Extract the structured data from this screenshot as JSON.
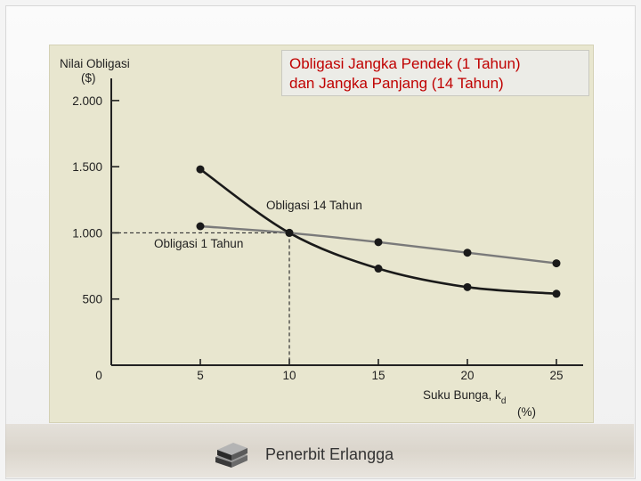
{
  "chart_data": {
    "type": "line",
    "title": "Obligasi Jangka Pendek (1 Tahun)",
    "title_line2": "dan Jangka Panjang (14 Tahun)",
    "ylabel_line1": "Nilai Obligasi",
    "ylabel_line2": "($)",
    "xlabel_line1": "Suku Bunga, k",
    "xlabel_sub": "d",
    "xlabel_line2": "(%)",
    "x": [
      5,
      10,
      15,
      20,
      25
    ],
    "xlim": [
      0,
      26
    ],
    "ylim": [
      0,
      2100
    ],
    "yticks": [
      {
        "value": 500,
        "label": "500"
      },
      {
        "value": 1000,
        "label": "1.000"
      },
      {
        "value": 1500,
        "label": "1.500"
      },
      {
        "value": 2000,
        "label": "2.000"
      }
    ],
    "xticks": [
      {
        "value": 0,
        "label": "0"
      },
      {
        "value": 5,
        "label": "5"
      },
      {
        "value": 10,
        "label": "10"
      },
      {
        "value": 15,
        "label": "15"
      },
      {
        "value": 20,
        "label": "20"
      },
      {
        "value": 25,
        "label": "25"
      }
    ],
    "series": [
      {
        "name": "Obligasi 14 Tahun",
        "values": [
          1480,
          1000,
          730,
          590,
          540
        ],
        "color": "#1a1a1a",
        "label_point": [
          8.7,
          1178
        ]
      },
      {
        "name": "Obligasi 1 Tahun",
        "values": [
          1050,
          1000,
          930,
          850,
          770
        ],
        "color": "#7a7a7a",
        "label_point": [
          2.4,
          890
        ]
      }
    ],
    "reference": {
      "x": 10,
      "y": 1000
    },
    "grid": false,
    "legend": "none"
  },
  "footer": {
    "publisher": "Penerbit Erlangga",
    "icon": "books-icon"
  },
  "colors": {
    "title_text": "#c00000",
    "panel_background": "#e8e6cf"
  }
}
